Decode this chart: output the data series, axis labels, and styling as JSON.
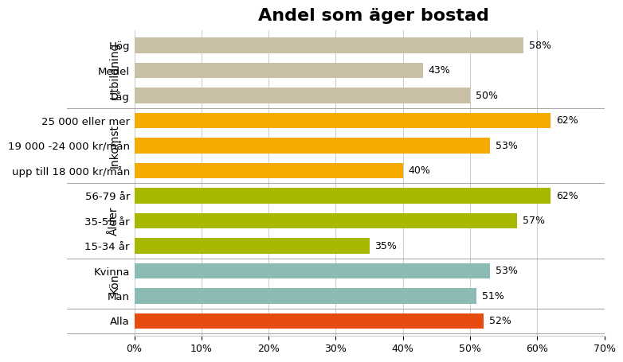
{
  "title": "Andel som äger bostad",
  "title_fontsize": 16,
  "categories": [
    "Hög",
    "Medel",
    "Låg",
    "25 000 eller mer",
    "19 000 -24 000 kr/mån",
    "upp till 18 000 kr/mån",
    "56-79 år",
    "35-55 år",
    "15-34 år",
    "Kvinna",
    "Man",
    "Alla"
  ],
  "values": [
    58,
    43,
    50,
    62,
    53,
    40,
    62,
    57,
    35,
    53,
    51,
    52
  ],
  "colors": [
    "#c9bfa4",
    "#c9bfa4",
    "#c9bfa4",
    "#f5aa00",
    "#f5aa00",
    "#f5aa00",
    "#a8b800",
    "#a8b800",
    "#a8b800",
    "#8bbcb4",
    "#8bbcb4",
    "#e84b0f"
  ],
  "group_labels": [
    "Utbildning",
    "Inkomst",
    "Ålder",
    "Kön"
  ],
  "xlim": [
    0,
    70
  ],
  "xticks": [
    0,
    10,
    20,
    30,
    40,
    50,
    60,
    70
  ],
  "bar_height": 0.62,
  "label_fontsize": 9.5,
  "tick_fontsize": 9,
  "value_fontsize": 9,
  "group_label_fontsize": 10,
  "background_color": "#ffffff",
  "grid_color": "#cccccc",
  "separator_color": "#aaaaaa"
}
